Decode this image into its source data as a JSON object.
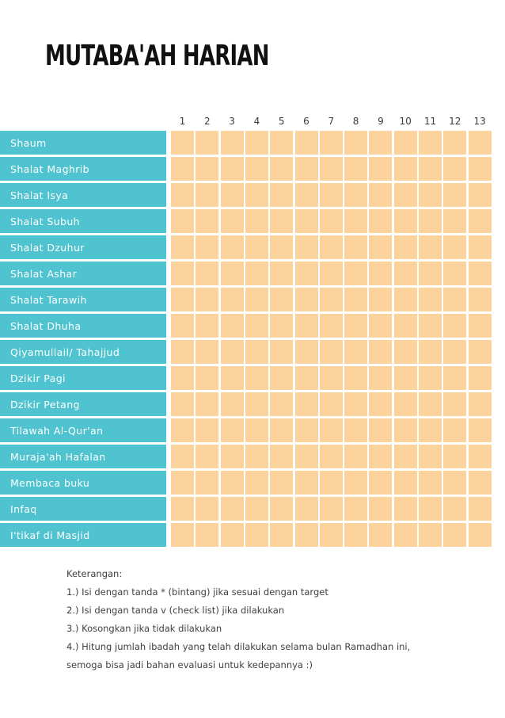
{
  "title": "MUTABA'AH HARIAN",
  "colors": {
    "row_label_bg": "#4fc3cf",
    "cell_bg": "#fcd39c",
    "text": "#3f3f3f"
  },
  "columns": [
    "1",
    "2",
    "3",
    "4",
    "5",
    "6",
    "7",
    "8",
    "9",
    "10",
    "11",
    "12",
    "13"
  ],
  "rows": [
    "Shaum",
    "Shalat Maghrib",
    "Shalat Isya",
    "Shalat Subuh",
    "Shalat Dzuhur",
    "Shalat Ashar",
    "Shalat Tarawih",
    "Shalat Dhuha",
    "Qiyamullail/ Tahajjud",
    "Dzikir Pagi",
    "Dzikir Petang",
    "Tilawah Al-Qur'an",
    "Muraja'ah Hafalan",
    "Membaca buku",
    "Infaq",
    "I'tikaf di Masjid"
  ],
  "legend": {
    "heading": "Keterangan:",
    "items": [
      "1.) Isi dengan tanda * (bintang) jika sesuai dengan target",
      "2.) Isi dengan tanda v (check list) jika dilakukan",
      "3.) Kosongkan jika tidak dilakukan",
      "4.) Hitung jumlah ibadah yang telah dilakukan selama bulan Ramadhan ini,",
      "semoga bisa jadi bahan evaluasi untuk kedepannya :)"
    ]
  }
}
